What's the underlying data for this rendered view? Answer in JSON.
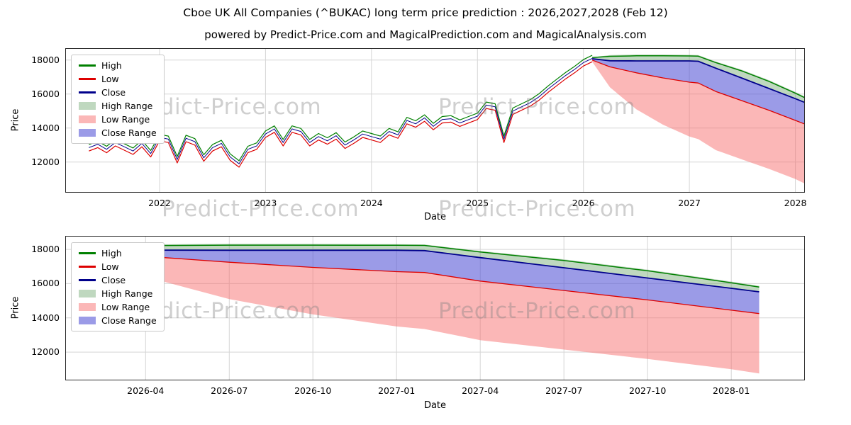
{
  "title": "Cboe UK All Companies (^BUKAC) long term price prediction : 2026,2027,2028 (Feb 12)",
  "subtitle": "powered by Predict-Price.com and MagicalPrediction.com and MagicalAnalysis.com",
  "watermark": "Predict-Price.com",
  "colors": {
    "high_line": "#008000",
    "low_line": "#dd0000",
    "close_line": "#00008b",
    "high_range_fill": "rgba(102,161,102,0.42)",
    "low_range_fill": "rgba(247,104,104,0.48)",
    "close_range_fill": "rgba(82,82,214,0.58)",
    "grid": "#d5d5d5",
    "spine": "#2a2a2a",
    "watermark": "rgba(128,128,128,0.38)"
  },
  "legend": {
    "items": [
      {
        "label": "High",
        "type": "line",
        "color": "high_line"
      },
      {
        "label": "Low",
        "type": "line",
        "color": "low_line"
      },
      {
        "label": "Close",
        "type": "line",
        "color": "close_line"
      },
      {
        "label": "High Range",
        "type": "patch",
        "color": "high_range_fill"
      },
      {
        "label": "Low Range",
        "type": "patch",
        "color": "low_range_fill"
      },
      {
        "label": "Close Range",
        "type": "patch",
        "color": "close_range_fill"
      }
    ]
  },
  "chart_data": [
    {
      "name": "historical-and-prediction",
      "type": "line",
      "xlabel": "Date",
      "ylabel": "Price",
      "xlim": [
        2021.11,
        2028.09
      ],
      "ylim": [
        10200,
        18700
      ],
      "grid": true,
      "xticks": [
        2022,
        2023,
        2024,
        2025,
        2026,
        2027,
        2028
      ],
      "xtick_labels": [
        "2022",
        "2023",
        "2024",
        "2025",
        "2026",
        "2027",
        "2028"
      ],
      "yticks": [
        12000,
        14000,
        16000,
        18000
      ],
      "historical": {
        "x": [
          "2021-05",
          "2021-06",
          "2021-07",
          "2021-08",
          "2021-09",
          "2021-10",
          "2021-11",
          "2021-12",
          "2022-01",
          "2022-02",
          "2022-03",
          "2022-04",
          "2022-05",
          "2022-06",
          "2022-07",
          "2022-08",
          "2022-09",
          "2022-10",
          "2022-11",
          "2022-12",
          "2023-01",
          "2023-02",
          "2023-03",
          "2023-04",
          "2023-05",
          "2023-06",
          "2023-07",
          "2023-08",
          "2023-09",
          "2023-10",
          "2023-11",
          "2023-12",
          "2024-01",
          "2024-02",
          "2024-03",
          "2024-04",
          "2024-05",
          "2024-06",
          "2024-07",
          "2024-08",
          "2024-09",
          "2024-10",
          "2024-11",
          "2024-12",
          "2025-01",
          "2025-02",
          "2025-03",
          "2025-04",
          "2025-05",
          "2025-06",
          "2025-07",
          "2025-08",
          "2025-09",
          "2025-10",
          "2025-11",
          "2025-12",
          "2026-01",
          "2026-02"
        ],
        "high": [
          13030,
          13230,
          12930,
          13330,
          13080,
          12830,
          13280,
          12680,
          13630,
          13530,
          12330,
          13580,
          13380,
          12430,
          13030,
          13280,
          12480,
          12080,
          12930,
          13130,
          13830,
          14130,
          13330,
          14130,
          13980,
          13330,
          13680,
          13430,
          13730,
          13180,
          13480,
          13830,
          13680,
          13530,
          13980,
          13780,
          14630,
          14430,
          14780,
          14280,
          14680,
          14730,
          14480,
          14680,
          14880,
          15530,
          15430,
          13530,
          15180,
          15430,
          15680,
          16030,
          16480,
          16880,
          17280,
          17630,
          18030,
          18280
        ],
        "low": [
          12650,
          12850,
          12550,
          12950,
          12700,
          12450,
          12900,
          12300,
          13250,
          13150,
          11950,
          13200,
          13000,
          12050,
          12650,
          12900,
          12100,
          11700,
          12550,
          12750,
          13450,
          13750,
          12950,
          13750,
          13600,
          12950,
          13300,
          13050,
          13350,
          12800,
          13100,
          13450,
          13300,
          13150,
          13600,
          13400,
          14250,
          14050,
          14400,
          13900,
          14300,
          14350,
          14100,
          14300,
          14500,
          15150,
          15050,
          13150,
          14800,
          15050,
          15300,
          15650,
          16100,
          16500,
          16900,
          17250,
          17650,
          17900
        ],
        "close": [
          12850,
          13050,
          12750,
          13150,
          12900,
          12650,
          13100,
          12500,
          13450,
          13350,
          12150,
          13400,
          13200,
          12250,
          12850,
          13100,
          12300,
          11900,
          12750,
          12950,
          13650,
          13950,
          13150,
          13950,
          13800,
          13150,
          13500,
          13250,
          13550,
          13000,
          13300,
          13650,
          13500,
          13350,
          13800,
          13600,
          14450,
          14250,
          14600,
          14100,
          14500,
          14550,
          14300,
          14500,
          14700,
          15350,
          15250,
          13350,
          15000,
          15250,
          15500,
          15850,
          16300,
          16700,
          17100,
          17450,
          17850,
          18100
        ]
      },
      "prediction": {
        "x": [
          "2026-02",
          "2026-04",
          "2026-07",
          "2026-10",
          "2027-01",
          "2027-02",
          "2027-04",
          "2027-07",
          "2027-10",
          "2028-01",
          "2028-02"
        ],
        "high": [
          18150,
          18220,
          18250,
          18250,
          18240,
          18230,
          17850,
          17350,
          16750,
          16050,
          15800
        ],
        "low": [
          18000,
          17600,
          17250,
          16950,
          16700,
          16650,
          16150,
          15600,
          15050,
          14450,
          14250
        ],
        "close": [
          18080,
          17960,
          17950,
          17950,
          17950,
          17930,
          17520,
          16930,
          16330,
          15730,
          15520
        ],
        "band_high_upper": [
          18160,
          18290,
          18330,
          18330,
          18310,
          18290,
          17910,
          17420,
          16820,
          16120,
          15870
        ],
        "band_low_lower": [
          17900,
          16400,
          15100,
          14200,
          13500,
          13350,
          12700,
          12150,
          11600,
          11000,
          10750
        ]
      }
    },
    {
      "name": "prediction-detail",
      "type": "line",
      "xlabel": "Date",
      "ylabel": "Price",
      "xlim": [
        2026.01,
        2028.22
      ],
      "ylim": [
        10350,
        18790
      ],
      "grid": true,
      "xticks": [
        "2026-04",
        "2026-07",
        "2026-10",
        "2027-01",
        "2027-04",
        "2027-07",
        "2027-10",
        "2028-01"
      ],
      "xtick_labels": [
        "2026-04",
        "2026-07",
        "2026-10",
        "2027-01",
        "2027-04",
        "2027-07",
        "2027-10",
        "2028-01"
      ],
      "yticks": [
        12000,
        14000,
        16000,
        18000
      ],
      "prediction": {
        "x": [
          "2026-02",
          "2026-04",
          "2026-07",
          "2026-10",
          "2027-01",
          "2027-02",
          "2027-04",
          "2027-07",
          "2027-10",
          "2028-01",
          "2028-02"
        ],
        "high": [
          18150,
          18220,
          18250,
          18250,
          18240,
          18230,
          17850,
          17350,
          16750,
          16050,
          15800
        ],
        "low": [
          18000,
          17600,
          17250,
          16950,
          16700,
          16650,
          16150,
          15600,
          15050,
          14450,
          14250
        ],
        "close": [
          18080,
          17960,
          17950,
          17950,
          17950,
          17930,
          17520,
          16930,
          16330,
          15730,
          15520
        ],
        "band_high_upper": [
          18160,
          18290,
          18330,
          18330,
          18310,
          18290,
          17910,
          17420,
          16820,
          16120,
          15870
        ],
        "band_low_lower": [
          17900,
          16400,
          15100,
          14200,
          13500,
          13350,
          12700,
          12150,
          11600,
          11000,
          10750
        ]
      }
    }
  ]
}
